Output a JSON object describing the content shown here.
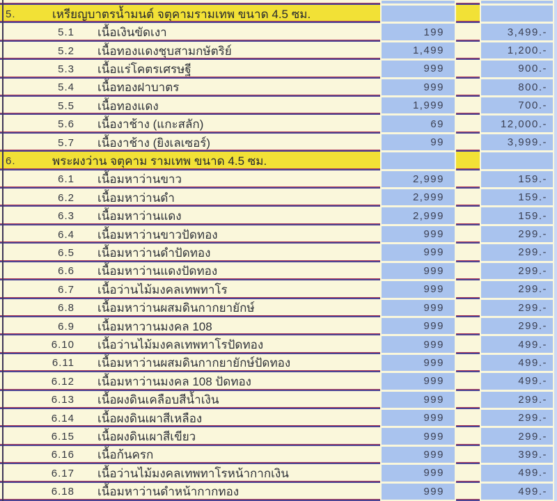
{
  "table": {
    "sections": [
      {
        "no": "5.",
        "title": "เหรียญบาตรน้ำมนต์ จตุคามรามเทพ ขนาด 4.5 ซม.",
        "items": [
          {
            "no": "5.1",
            "name": "เนื้อเงินขัดเงา",
            "qty": "199",
            "price": "3,499.-"
          },
          {
            "no": "5.2",
            "name": "เนื้อทองแดงชุบสามกษัตริย์",
            "qty": "1,499",
            "price": "1,200.-"
          },
          {
            "no": "5.3",
            "name": "เนื้อแร่โคตรเศรษฐี",
            "qty": "999",
            "price": "900.-"
          },
          {
            "no": "5.4",
            "name": "เนื้อทองฝาบาตร",
            "qty": "999",
            "price": "800.-"
          },
          {
            "no": "5.5",
            "name": "เนื้อทองแดง",
            "qty": "1,999",
            "price": "700.-"
          },
          {
            "no": "5.6",
            "name": "เนื้องาช้าง (แกะสลัก)",
            "qty": "69",
            "price": "12,000.-"
          },
          {
            "no": "5.7",
            "name": "เนื้องาช้าง (ยิงเลเซอร์)",
            "qty": "99",
            "price": "3,999.-"
          }
        ]
      },
      {
        "no": "6.",
        "title": "พระผงว่าน จตุคาม รามเทพ ขนาด 4.5 ซม.",
        "items": [
          {
            "no": "6.1",
            "name": "เนื้อมหาว่านขาว",
            "qty": "2,999",
            "price": "159.-"
          },
          {
            "no": "6.2",
            "name": "เนื้อมหาว่านดำ",
            "qty": "2,999",
            "price": "159.-"
          },
          {
            "no": "6.3",
            "name": "เนื้อมหาว่านแดง",
            "qty": "2,999",
            "price": "159.-"
          },
          {
            "no": "6.4",
            "name": "เนื้อมหาว่านขาวปัดทอง",
            "qty": "999",
            "price": "299.-"
          },
          {
            "no": "6.5",
            "name": "เนื้อมหาว่านดำปัดทอง",
            "qty": "999",
            "price": "299.-"
          },
          {
            "no": "6.6",
            "name": "เนื้อมหาว่านแดงปัดทอง",
            "qty": "999",
            "price": "299.-"
          },
          {
            "no": "6.7",
            "name": "เนื้อว่านไม้มงคลเทพทาโร",
            "qty": "999",
            "price": "299.-"
          },
          {
            "no": "6.8",
            "name": "เนื้อมหาว่านผสมดินกากยายักษ์",
            "qty": "999",
            "price": "299.-"
          },
          {
            "no": "6.9",
            "name": "เนื้อมหาวานมงคล 108",
            "qty": "999",
            "price": "299.-"
          },
          {
            "no": "6.10",
            "name": "เนื้อว่านไม้มงคลเทพทาโรปัดทอง",
            "qty": "999",
            "price": "499.-"
          },
          {
            "no": "6.11",
            "name": "เนื้อมหาว่านผสมดินกากยายักษ์ปัดทอง",
            "qty": "999",
            "price": "499.-"
          },
          {
            "no": "6.12",
            "name": "เนื้อมหาว่านมงคล 108 ปัดทอง",
            "qty": "999",
            "price": "499.-"
          },
          {
            "no": "6.13",
            "name": "เนื้อผงดินเคลือบสีน้ำเงิน",
            "qty": "999",
            "price": "299.-"
          },
          {
            "no": "6.14",
            "name": "เนื้อผงดินเผาสีเหลือง",
            "qty": "999",
            "price": "299.-"
          },
          {
            "no": "6.15",
            "name": "เนื้อผงดินเผาสีเขียว",
            "qty": "999",
            "price": "299.-"
          },
          {
            "no": "6.16",
            "name": "เนื้อก้นครก",
            "qty": "999",
            "price": "399.-"
          },
          {
            "no": "6.17",
            "name": "เนื้อว่านไม้มงคลเทพทาโรหน้ากากเงิน",
            "qty": "999",
            "price": "499.-"
          },
          {
            "no": "6.18",
            "name": "เนื้อมหาว่านดำหน้ากากทอง",
            "qty": "999",
            "price": "499.-"
          }
        ]
      }
    ]
  },
  "colors": {
    "page_cream": "#FAF7DB",
    "header_yellow": "#F2E136",
    "cell_blue": "#A9C3EE",
    "edge_blue": "#CCD9F4",
    "rule_crimson": "#B03A55",
    "rule_indigo": "#4B4394",
    "text_dark": "#2E3138"
  }
}
